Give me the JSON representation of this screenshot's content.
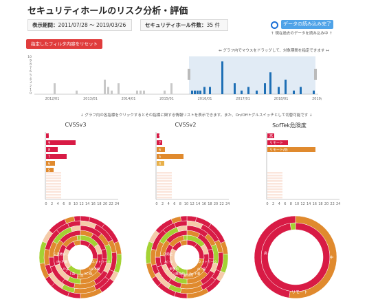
{
  "header": {
    "title": "セキュリティホールのリスク分析・評価"
  },
  "period": {
    "label": "表示期間：",
    "value": "2011/07/28 〜 2019/03/26"
  },
  "count": {
    "label": "セキュリティホール件数：",
    "value": "35 件"
  },
  "status": {
    "button_label": "データの読み込み完了",
    "note": "↑ 現在過去のデータを読み込み中 ↑"
  },
  "reset_button": {
    "label": "指定したフィルタ内容をリセット"
  },
  "timeline": {
    "hint": "↔ グラフ内でマウスをドラッグして、対象期間を指定できます ↔",
    "y_ticks": [
      "10",
      "9",
      "8",
      "7",
      "6",
      "5",
      "4",
      "3",
      "2",
      "1",
      "0"
    ],
    "x_ticks": [
      "2012/01",
      "2013/01",
      "2014/01",
      "2015/01",
      "2016/01",
      "2017/01",
      "2018/01",
      "2019/01"
    ]
  },
  "click_hint": "↓ グラフ内の各指標をクリックするとその指標に関する情報リストを表示できます。また、On/Offトグルスイッチとして切替可能です ↓",
  "panels": [
    {
      "title": "CVSSv3",
      "bars": [
        "1",
        "9",
        "8",
        "7",
        "6",
        "5"
      ],
      "x_ticks": [
        "0",
        "2",
        "4",
        "6",
        "8",
        "10",
        "12",
        "14",
        "16",
        "18",
        "20",
        "22",
        "24"
      ],
      "donut_labels": [
        "AV:ネットワーク",
        "UI:不要",
        "AC:低",
        "C:高",
        "I:高",
        "A:高",
        "PR:不要",
        "S:変更なし"
      ]
    },
    {
      "title": "CVSSv2",
      "bars": [
        "9",
        "7",
        "6",
        "5",
        "4"
      ],
      "x_ticks": [
        "0",
        "2",
        "4",
        "6",
        "8",
        "10",
        "12",
        "14",
        "16",
        "18",
        "20",
        "22",
        "24"
      ],
      "donut_labels": [
        "AV:ネットワーク",
        "AC:低",
        "Au:不要",
        "C:部分的",
        "I:部分的",
        "A:部分的",
        "AC:中",
        "C:完全"
      ]
    },
    {
      "title": "SofTek危険度",
      "bars": [
        "高",
        "リモート",
        "リモート/低"
      ],
      "x_ticks": [
        "0",
        "2",
        "4",
        "6",
        "8",
        "10",
        "12",
        "14",
        "16",
        "18",
        "20",
        "22",
        "24"
      ],
      "donut_labels": [
        "高",
        "中",
        "リモート"
      ]
    }
  ],
  "colors": {
    "primary": "#1e6fb5",
    "crimson": "#d81b45",
    "orange": "#e08a2e",
    "lime": "#a4d233",
    "peach": "#f5cba9"
  }
}
